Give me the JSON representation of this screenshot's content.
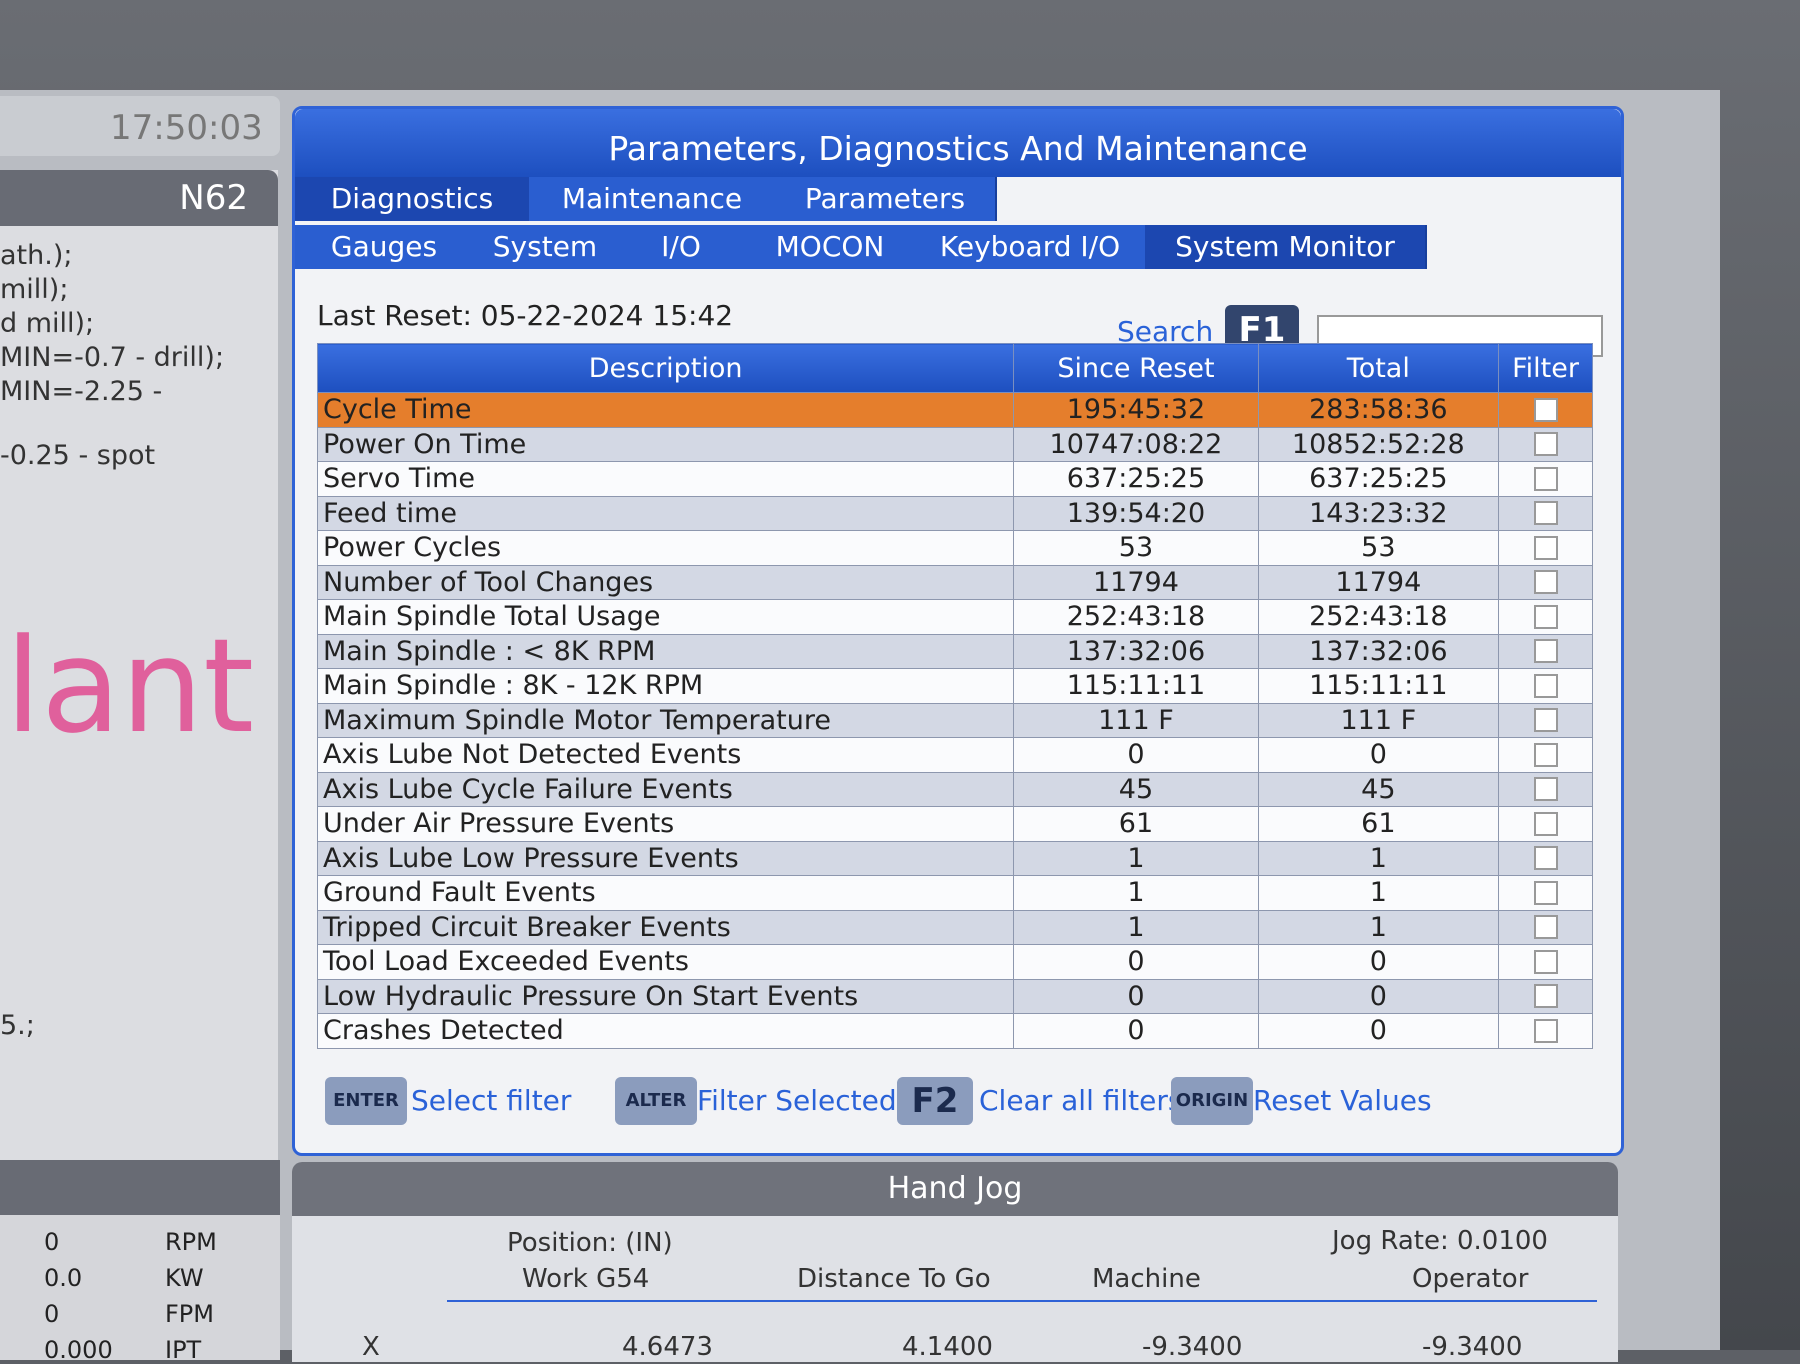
{
  "status": {
    "time": "17:50:03",
    "block": "N62"
  },
  "left_panel": {
    "program_lines": [
      "ath.);",
      "mill);",
      "d mill);",
      "MIN=-0.7 - drill);",
      "MIN=-2.25 -",
      "-0.25 - spot",
      "5.;"
    ],
    "big_text": "lant",
    "spindle_rows": [
      [
        "0",
        "RPM"
      ],
      [
        "0.0",
        "KW"
      ],
      [
        "0",
        "FPM"
      ],
      [
        "0.000",
        "IPT"
      ]
    ]
  },
  "window": {
    "title": "Parameters, Diagnostics And Maintenance",
    "tabs": [
      "Diagnostics",
      "Maintenance",
      "Parameters"
    ],
    "subtabs": [
      "Gauges",
      "System",
      "I/O",
      "MOCON",
      "Keyboard I/O",
      "System Monitor"
    ],
    "last_reset": "Last Reset: 05-22-2024 15:42",
    "search_label": "Search",
    "search_key": "F1",
    "table": {
      "headers": [
        "Description",
        "Since Reset",
        "Total",
        "Filter"
      ],
      "rows": [
        [
          "Cycle Time",
          "195:45:32",
          "283:58:36"
        ],
        [
          "Power On Time",
          "10747:08:22",
          "10852:52:28"
        ],
        [
          "Servo Time",
          "637:25:25",
          "637:25:25"
        ],
        [
          "Feed time",
          "139:54:20",
          "143:23:32"
        ],
        [
          "Power Cycles",
          "53",
          "53"
        ],
        [
          "Number of Tool Changes",
          "11794",
          "11794"
        ],
        [
          "Main Spindle Total Usage",
          "252:43:18",
          "252:43:18"
        ],
        [
          "Main Spindle : < 8K RPM",
          "137:32:06",
          "137:32:06"
        ],
        [
          "Main Spindle : 8K - 12K RPM",
          "115:11:11",
          "115:11:11"
        ],
        [
          "Maximum Spindle Motor Temperature",
          "111 F",
          "111 F"
        ],
        [
          "Axis Lube Not Detected Events",
          "0",
          "0"
        ],
        [
          "Axis Lube Cycle Failure Events",
          "45",
          "45"
        ],
        [
          "Under Air Pressure Events",
          "61",
          "61"
        ],
        [
          "Axis Lube Low Pressure Events",
          "1",
          "1"
        ],
        [
          "Ground Fault Events",
          "1",
          "1"
        ],
        [
          "Tripped Circuit Breaker Events",
          "1",
          "1"
        ],
        [
          "Tool Load Exceeded Events",
          "0",
          "0"
        ],
        [
          "Low Hydraulic Pressure On Start Events",
          "0",
          "0"
        ],
        [
          "Crashes Detected",
          "0",
          "0"
        ]
      ]
    },
    "actions": [
      [
        "ENTER",
        "Select filter"
      ],
      [
        "ALTER",
        "Filter Selected"
      ],
      [
        "F2",
        "Clear all filters"
      ],
      [
        "ORIGIN",
        "Reset Values"
      ]
    ]
  },
  "hand_jog": {
    "title": "Hand Jog",
    "position": "Position: (IN)",
    "jog_rate": "Jog Rate: 0.0100",
    "columns": [
      "Work G54",
      "Distance To Go",
      "Machine",
      "Operator"
    ],
    "row": [
      "X",
      "4.6473",
      "4.1400",
      "-9.3400",
      "-9.3400"
    ]
  }
}
